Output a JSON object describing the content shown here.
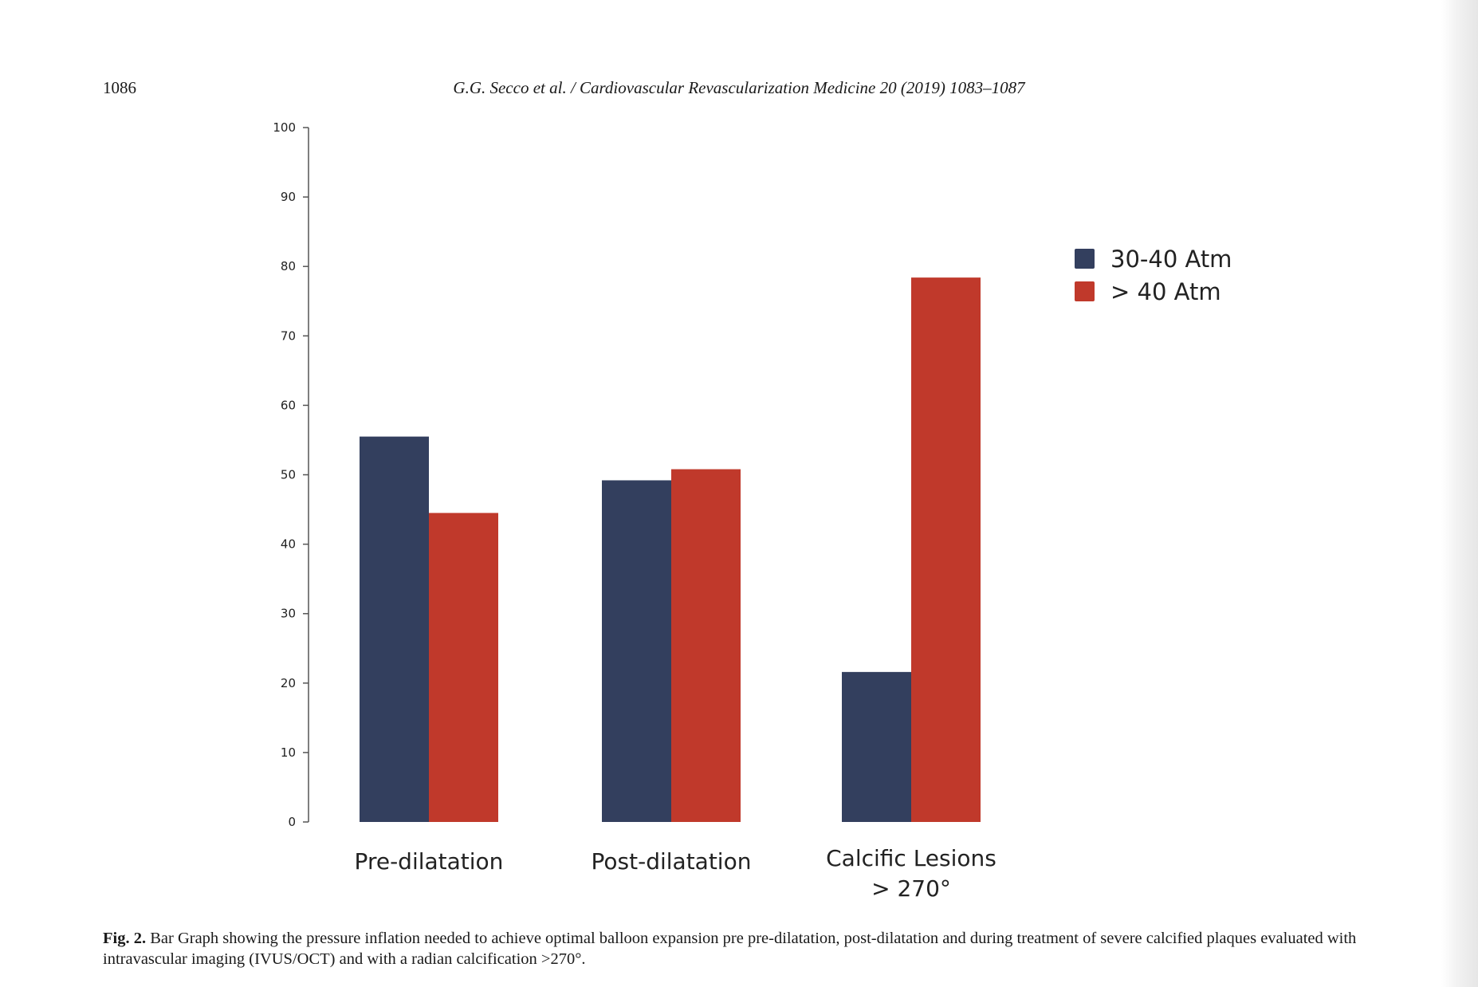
{
  "header": {
    "page_number": "1086",
    "journal_ref": "G.G. Secco et al. / Cardiovascular Revascularization Medicine 20 (2019) 1083–1087"
  },
  "caption": {
    "label": "Fig. 2.",
    "text": "Bar Graph showing the pressure inflation needed to achieve optimal balloon expansion pre pre-dilatation, post-dilatation and during treatment of severe calcified plaques evaluated with intravascular imaging (IVUS/OCT) and with a radian calcification >270°."
  },
  "chart_data": {
    "type": "bar",
    "categories": [
      "Pre-dilatation",
      "Post-dilatation",
      "Calcific Lesions\n> 270°"
    ],
    "series": [
      {
        "name": "30-40 Atm",
        "color": "#333f5e",
        "values": [
          55.5,
          49.2,
          21.6
        ]
      },
      {
        "name": "> 40 Atm",
        "color": "#c0392b",
        "values": [
          44.5,
          50.8,
          78.4
        ]
      }
    ],
    "ylim": [
      0,
      100
    ],
    "yticks": [
      0,
      10,
      20,
      30,
      40,
      50,
      60,
      70,
      80,
      90,
      100
    ],
    "legend_position": "right",
    "grid": false
  }
}
